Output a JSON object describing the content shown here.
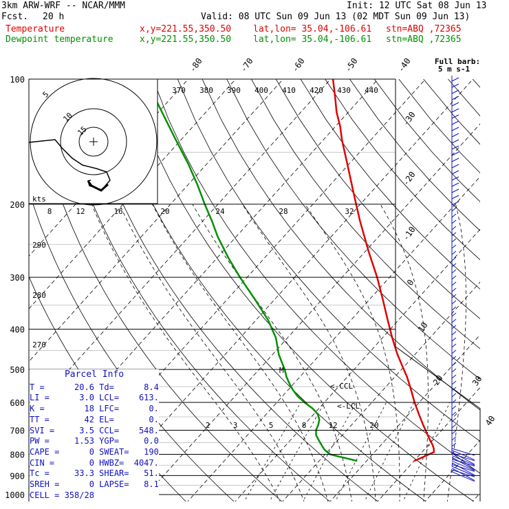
{
  "header": {
    "model": "3km ARW-WRF -- NCAR/MMM",
    "init": "Init: 12 UTC Sat 08 Jun 13",
    "fcst_label": "Fcst.",
    "fcst_value": "20 h",
    "valid": "Valid: 08 UTC Sun 09 Jun 13 (02 MDT Sun 09 Jun 13)",
    "temp_label": "Temperature",
    "dew_label": "Dewpoint temperature",
    "xy": "x,y=221.55,350.50",
    "latlon": "lat,lon= 35.04,-106.61",
    "stn": "stn=ABQ ,72365"
  },
  "colors": {
    "temperature": "#e00000",
    "dewpoint": "#009000",
    "parcel_text": "#1010c0"
  },
  "chart_data": {
    "type": "line",
    "pressure_axis": {
      "range": [
        1000,
        100
      ],
      "log": true,
      "ticks": [
        "100",
        "200",
        "300",
        "400",
        "500",
        "600",
        "700",
        "800",
        "900",
        "1000"
      ]
    },
    "isotherm_labels_top": [
      "-80",
      "-70",
      "-60",
      "-50",
      "-40"
    ],
    "isotherm_labels_right": [
      "-30",
      "-20",
      "-10",
      "0",
      "10",
      "20",
      "30",
      "40"
    ],
    "theta_labels": [
      "370",
      "380",
      "390",
      "400",
      "410",
      "420",
      "430",
      "440"
    ],
    "theta_left_labels": [
      "290",
      "280",
      "270"
    ],
    "mixing_ratio_labels": [
      "2",
      "3",
      "5",
      "8",
      "12",
      "20"
    ],
    "hodograph": {
      "units_label": "kts",
      "ring_labels": [
        "5",
        "10",
        "15"
      ],
      "speed_labels": [
        "8",
        "12",
        "16",
        "20",
        "24",
        "28",
        "32"
      ]
    },
    "wind_legend": {
      "line1": "Full barb:",
      "line2": "5 m s-1"
    },
    "annotations": {
      "ccl": "<-CCL",
      "lcl": "<-LCL",
      "marker": "M"
    },
    "series": [
      {
        "name": "Temperature",
        "p": [
          830,
          815,
          790,
          775,
          760,
          745,
          720,
          700,
          680,
          640,
          600,
          560,
          520,
          500,
          460,
          420,
          380,
          340,
          300,
          260,
          220,
          190,
          160,
          140,
          130,
          120,
          110,
          105,
          100
        ],
        "t": [
          20.0,
          21.0,
          22.5,
          21.8,
          20.9,
          19.8,
          18.0,
          16.6,
          15.1,
          12.1,
          9.0,
          5.9,
          2.5,
          0.5,
          -3.7,
          -7.9,
          -12.3,
          -17.1,
          -22.6,
          -29.3,
          -36.8,
          -43.1,
          -50.4,
          -56.1,
          -59.0,
          -62.5,
          -65.8,
          -67.6,
          -69.5
        ]
      },
      {
        "name": "Dewpoint temperature",
        "p": [
          830,
          815,
          800,
          780,
          760,
          740,
          720,
          700,
          680,
          660,
          640,
          620,
          600,
          580,
          560,
          540,
          520,
          500,
          480,
          460,
          420,
          380,
          340,
          300,
          270,
          240,
          220,
          200,
          180,
          160,
          140,
          120,
          110,
          100
        ],
        "t": [
          8.0,
          4.5,
          1.0,
          -1.0,
          -2.5,
          -4.0,
          -5.5,
          -6.5,
          -7.0,
          -7.8,
          -9.2,
          -11.4,
          -14.2,
          -16.8,
          -19.0,
          -21.0,
          -22.9,
          -24.6,
          -26.6,
          -28.7,
          -32.4,
          -37.5,
          -44.0,
          -51.5,
          -57.5,
          -63.8,
          -68.0,
          -72.8,
          -77.9,
          -83.9,
          -91.1,
          -99.3,
          -103.9,
          -108.5
        ]
      }
    ]
  },
  "parcel_info": {
    "title": "Parcel Info",
    "rows": [
      [
        "T",
        "20.6",
        "Td",
        "8.4"
      ],
      [
        "LI",
        "3.0",
        "LCL",
        "613."
      ],
      [
        "K",
        "18",
        "LFC",
        "0."
      ],
      [
        "TT",
        "42",
        "EL",
        "0."
      ],
      [
        "SVI",
        "3.5",
        "CCL",
        "548."
      ],
      [
        "PW",
        "1.53",
        "YGP",
        "0.0"
      ],
      [
        "CAPE",
        "0",
        "SWEAT",
        "190"
      ],
      [
        "CIN",
        "0",
        "HWBZ",
        "4047."
      ],
      [
        "Tc",
        "33.3",
        "SHEAR",
        "51."
      ],
      [
        "SREH",
        "0",
        "LAPSE",
        "8.1"
      ]
    ],
    "cell": "CELL = 358/28"
  }
}
